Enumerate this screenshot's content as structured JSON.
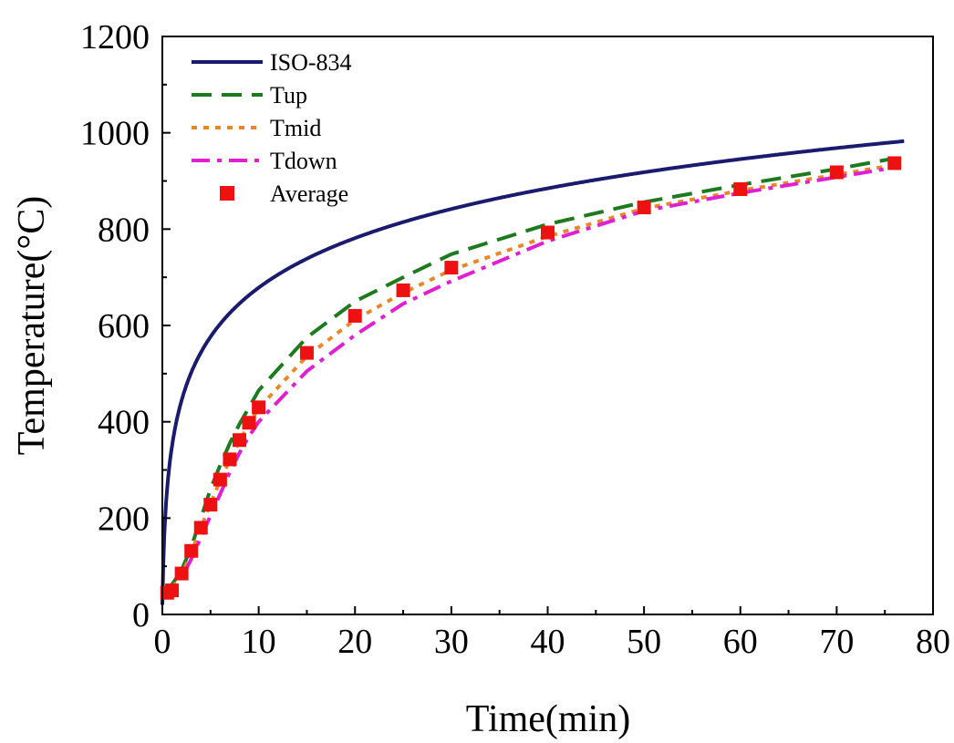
{
  "chart_data": {
    "type": "line",
    "title": "",
    "xlabel": "Time(min)",
    "ylabel": "Temperature(°C)",
    "xlim": [
      0,
      80
    ],
    "ylim": [
      0,
      1200
    ],
    "xticks": [
      0,
      10,
      20,
      30,
      40,
      50,
      60,
      70,
      80
    ],
    "yticks": [
      0,
      200,
      400,
      600,
      800,
      1000,
      1200
    ],
    "grid": false,
    "legend_position": "top-left",
    "series": [
      {
        "name": "ISO-834",
        "style": "solid",
        "color": "#1a1a6e",
        "formula": "20 + 345*log10(8*t + 1)",
        "t_range": [
          0,
          77
        ],
        "x": [
          0,
          1,
          2,
          3,
          5,
          10,
          15,
          20,
          30,
          40,
          50,
          60,
          70,
          77
        ],
        "y": [
          20,
          349,
          445,
          502,
          576,
          678,
          739,
          781,
          842,
          885,
          918,
          945,
          968,
          982
        ]
      },
      {
        "name": "Tup",
        "style": "dashed",
        "color": "#1e7a1e",
        "x": [
          0,
          1,
          2,
          3,
          4,
          5,
          6,
          7,
          8,
          9,
          10,
          15,
          20,
          25,
          30,
          40,
          50,
          60,
          70,
          76
        ],
        "y": [
          50,
          62,
          92,
          140,
          200,
          260,
          310,
          355,
          395,
          430,
          465,
          575,
          650,
          700,
          748,
          810,
          856,
          892,
          925,
          947
        ]
      },
      {
        "name": "Tmid",
        "style": "dotted",
        "color": "#e8872a",
        "x": [
          0,
          1,
          2,
          3,
          4,
          5,
          6,
          7,
          8,
          9,
          10,
          15,
          20,
          25,
          30,
          40,
          50,
          60,
          70,
          76
        ],
        "y": [
          45,
          55,
          82,
          128,
          180,
          230,
          278,
          320,
          360,
          396,
          428,
          536,
          612,
          668,
          715,
          785,
          843,
          880,
          913,
          933
        ]
      },
      {
        "name": "Tdown",
        "style": "dash-dot",
        "color": "#e020d0",
        "x": [
          0,
          1,
          2,
          3,
          4,
          5,
          6,
          7,
          8,
          9,
          10,
          15,
          20,
          25,
          30,
          40,
          50,
          60,
          70,
          76
        ],
        "y": [
          40,
          50,
          75,
          115,
          160,
          205,
          250,
          295,
          335,
          370,
          400,
          505,
          580,
          645,
          692,
          775,
          838,
          875,
          908,
          928
        ]
      },
      {
        "name": "Average",
        "style": "markers",
        "marker": "square",
        "color": "#ee1111",
        "x": [
          0.5,
          1,
          2,
          3,
          4,
          5,
          6,
          7,
          8,
          9,
          10,
          15,
          20,
          25,
          30,
          40,
          50,
          60,
          70,
          76
        ],
        "y": [
          45,
          50,
          85,
          132,
          180,
          228,
          280,
          322,
          362,
          398,
          430,
          543,
          620,
          673,
          720,
          793,
          845,
          883,
          918,
          937
        ]
      }
    ]
  }
}
